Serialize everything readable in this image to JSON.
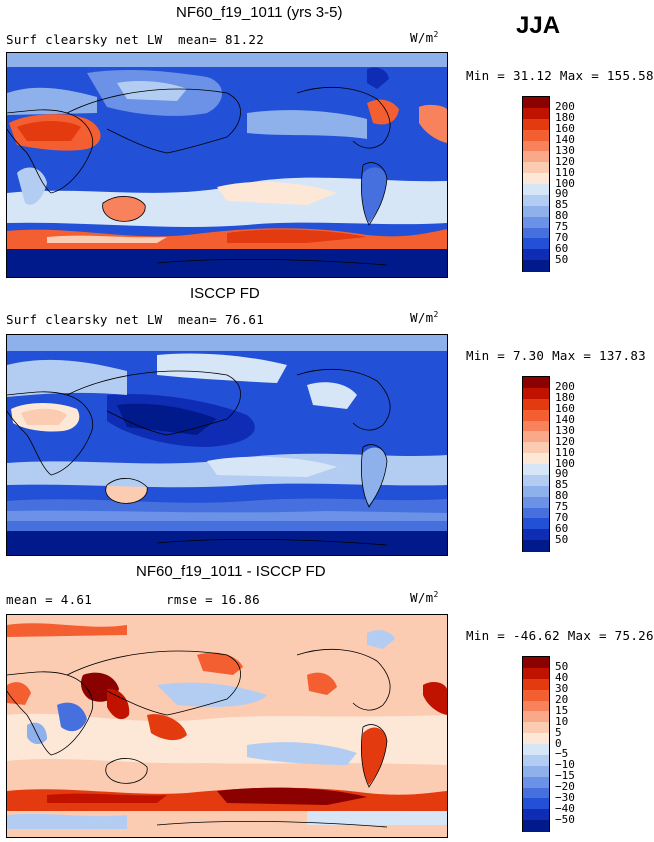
{
  "season": "JJA",
  "panels": [
    {
      "title": "NF60_f19_1011 (yrs 3-5)",
      "left_label": "Surf clearsky net LW",
      "stat1": "mean=  81.22",
      "stat2": "",
      "units": "W/m",
      "units_sup": "2",
      "minmax": "Min =  31.12 Max = 155.58"
    },
    {
      "title": "ISCCP FD",
      "left_label": "Surf clearsky net LW",
      "stat1": "mean=  76.61",
      "stat2": "",
      "units": "W/m",
      "units_sup": "2",
      "minmax": "Min =   7.30 Max = 137.83"
    },
    {
      "title": "NF60_f19_1011 - ISCCP FD",
      "left_label": "mean =   4.61",
      "stat1": "rmse =  16.86",
      "stat2": "",
      "units": "W/m",
      "units_sup": "2",
      "minmax": "Min = -46.62 Max =  75.26"
    }
  ],
  "chart_data": [
    {
      "type": "heatmap",
      "title": "NF60_f19_1011 (yrs 3-5)",
      "variable": "Surf clearsky net LW",
      "mean": 81.22,
      "min": 31.12,
      "max": 155.58,
      "units": "W/m2",
      "levels": [
        "200",
        "180",
        "160",
        "140",
        "130",
        "120",
        "110",
        "100",
        "90",
        "85",
        "80",
        "75",
        "70",
        "60",
        "50"
      ],
      "colors": [
        "#8b0000",
        "#c11200",
        "#e33a10",
        "#f45f31",
        "#f7825b",
        "#f9a888",
        "#fbcbb2",
        "#fde8d8",
        "#d7e6f7",
        "#b3cdf2",
        "#8eb1ec",
        "#6b92e6",
        "#4670de",
        "#2250d6",
        "#0f2cb4",
        "#001a8c"
      ]
    },
    {
      "type": "heatmap",
      "title": "ISCCP FD",
      "variable": "Surf clearsky net LW",
      "mean": 76.61,
      "min": 7.3,
      "max": 137.83,
      "units": "W/m2",
      "levels": [
        "200",
        "180",
        "160",
        "140",
        "130",
        "120",
        "110",
        "100",
        "90",
        "85",
        "80",
        "75",
        "70",
        "60",
        "50"
      ],
      "colors": [
        "#8b0000",
        "#c11200",
        "#e33a10",
        "#f45f31",
        "#f7825b",
        "#f9a888",
        "#fbcbb2",
        "#fde8d8",
        "#d7e6f7",
        "#b3cdf2",
        "#8eb1ec",
        "#6b92e6",
        "#4670de",
        "#2250d6",
        "#0f2cb4",
        "#001a8c"
      ]
    },
    {
      "type": "heatmap",
      "title": "NF60_f19_1011 - ISCCP FD",
      "mean": 4.61,
      "rmse": 16.86,
      "min": -46.62,
      "max": 75.26,
      "units": "W/m2",
      "levels": [
        "50",
        "40",
        "30",
        "20",
        "15",
        "10",
        "5",
        "0",
        "−5",
        "−10",
        "−15",
        "−20",
        "−30",
        "−40",
        "−50"
      ],
      "colors": [
        "#8b0000",
        "#c11200",
        "#e33a10",
        "#f45f31",
        "#f7825b",
        "#f9a888",
        "#fbcbb2",
        "#fde8d8",
        "#d7e6f7",
        "#b3cdf2",
        "#8eb1ec",
        "#6b92e6",
        "#4670de",
        "#2250d6",
        "#0f2cb4",
        "#001a8c"
      ]
    }
  ]
}
